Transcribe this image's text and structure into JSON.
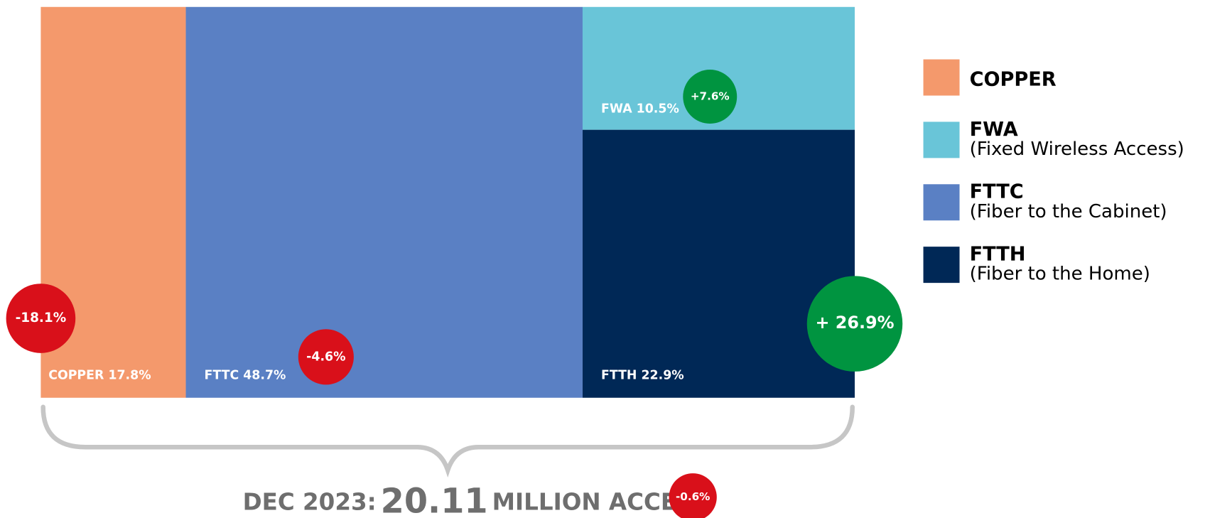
{
  "chart_data": {
    "type": "treemap",
    "categories": [
      "COPPER",
      "FWA",
      "FTTC",
      "FTTH"
    ],
    "descriptions": [
      null,
      "(Fixed Wireless Access)",
      "(Fiber to the Cabinet)",
      "(Fiber to the Home)"
    ],
    "values": [
      17.8,
      10.5,
      48.7,
      22.9
    ],
    "value_labels": [
      "17.8%",
      "10.5%",
      "48.7%",
      "22.9%"
    ],
    "changes": [
      -18.1,
      7.6,
      -4.6,
      26.9
    ],
    "change_labels": [
      "-18.1%",
      "+7.6%",
      "-4.6%",
      "+ 26.9%"
    ],
    "colors": [
      "#f4996c",
      "#69c5d8",
      "#5a80c4",
      "#002856"
    ],
    "total_prefix": "DEC 2023:",
    "total": 20.11,
    "total_unit": "MILLION ACCES",
    "total_change": -0.6,
    "total_change_label": "-0.6%"
  }
}
